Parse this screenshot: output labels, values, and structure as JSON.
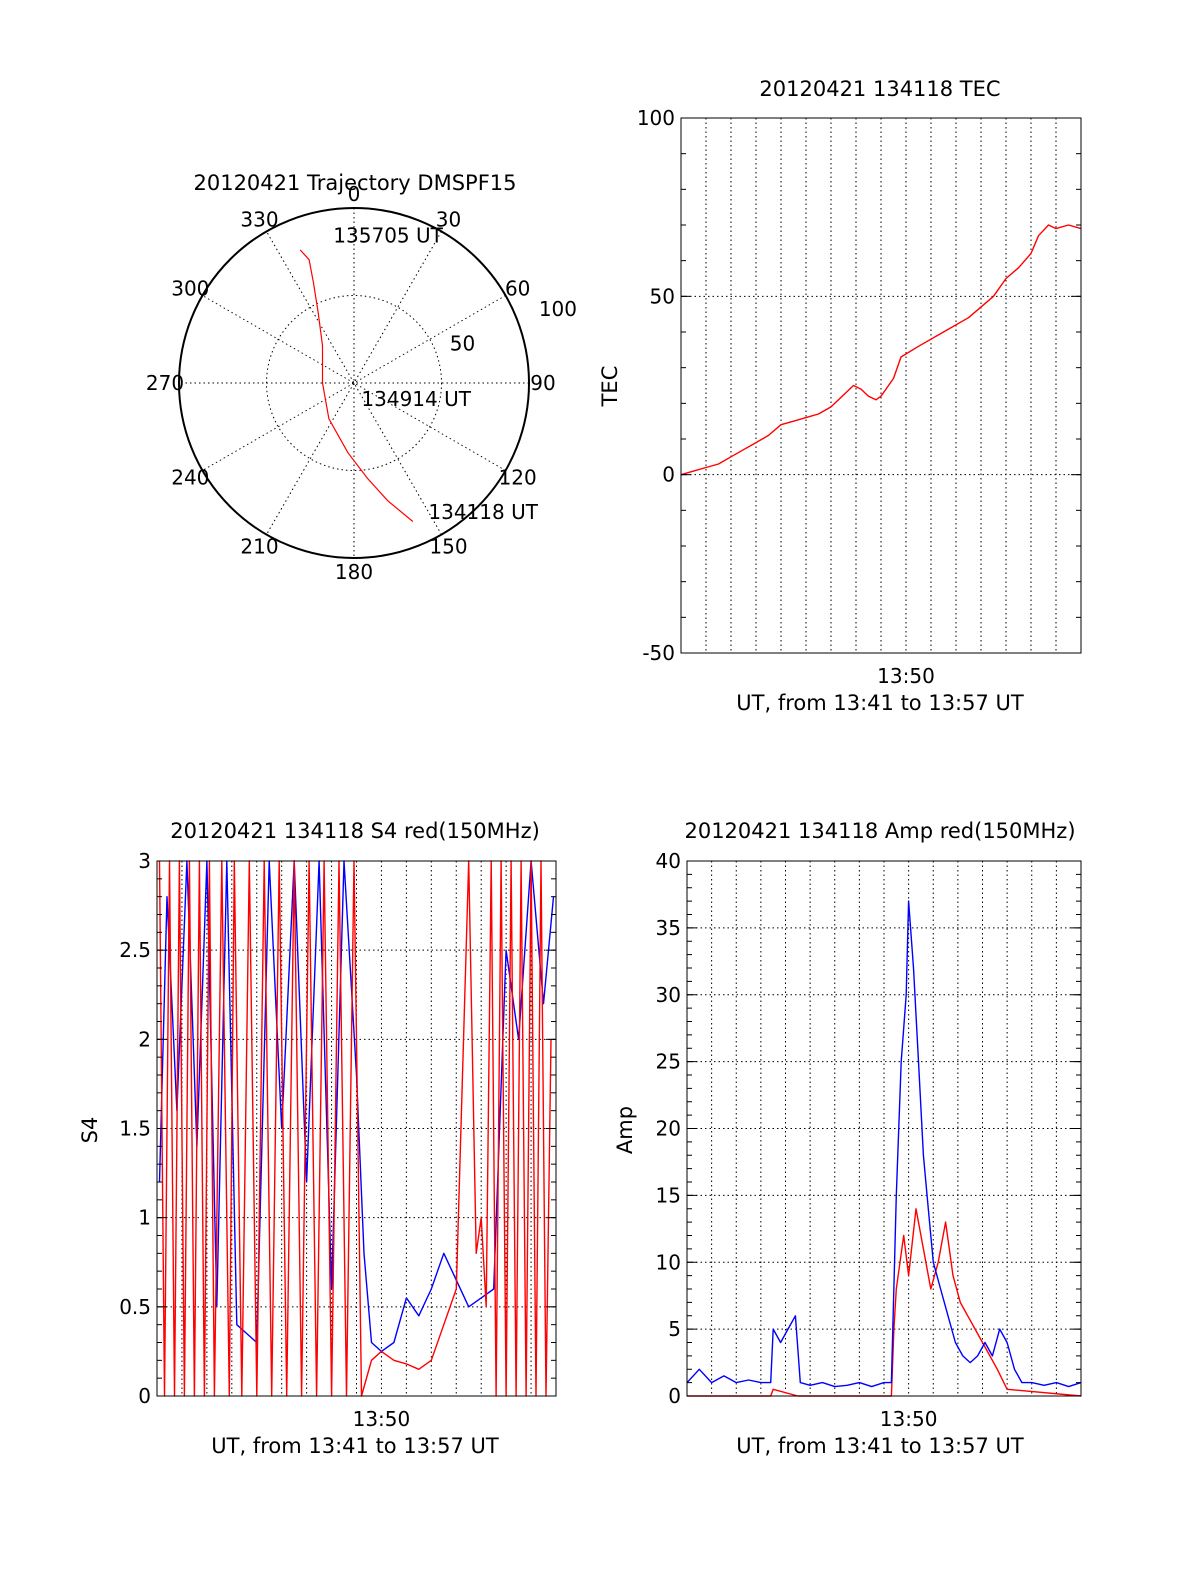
{
  "chart_data": [
    {
      "type": "polar",
      "title": "20120421 Trajectory DMSPF15",
      "angle_labels": [
        "0",
        "30",
        "60",
        "90",
        "120",
        "150",
        "180",
        "210",
        "240",
        "270",
        "300",
        "330"
      ],
      "radial_labels": [
        "50",
        "100"
      ],
      "radial_max": 100,
      "grid": true,
      "series": [
        {
          "color": "#ff0000",
          "points": [
            {
              "az": 157,
              "r": 86
            },
            {
              "az": 164,
              "r": 70
            },
            {
              "az": 172,
              "r": 55
            },
            {
              "az": 185,
              "r": 40
            },
            {
              "az": 215,
              "r": 25
            },
            {
              "az": 270,
              "r": 18
            },
            {
              "az": 320,
              "r": 28
            },
            {
              "az": 333,
              "r": 45
            },
            {
              "az": 338,
              "r": 62
            },
            {
              "az": 340,
              "r": 75
            },
            {
              "az": 338,
              "r": 82
            }
          ]
        }
      ],
      "annotations": [
        {
          "text": "135705 UT",
          "az": 352,
          "r": 85
        },
        {
          "text": "134914 UT",
          "az": 155,
          "r": 10
        },
        {
          "text": "134118 UT",
          "az": 150,
          "r": 85
        }
      ]
    },
    {
      "type": "line",
      "title": "20120421 134118 TEC",
      "xlabel": "UT, from 13:41 to 13:57 UT",
      "ylabel": "TEC",
      "xlim": [
        0,
        16
      ],
      "ylim": [
        -50,
        100
      ],
      "yticks": [
        "100",
        "50",
        "0",
        "-50"
      ],
      "xticks": [
        {
          "label": "13:50",
          "x": 9
        }
      ],
      "grid": true,
      "series": [
        {
          "color": "#ff0000",
          "x": [
            0,
            0.5,
            1,
            1.5,
            2,
            2.5,
            3,
            3.5,
            4,
            4.5,
            5,
            5.5,
            6,
            6.3,
            6.6,
            6.9,
            7.2,
            7.5,
            7.8,
            8.0,
            8.2,
            8.5,
            8.8,
            9.5,
            10.5,
            11.5,
            12.5,
            13.0,
            13.5,
            14.0,
            14.3,
            14.7,
            15.0,
            15.5,
            16.0
          ],
          "y": [
            0,
            1,
            2,
            3,
            5,
            7,
            9,
            11,
            14,
            15,
            16,
            17,
            19,
            21,
            23,
            25,
            24,
            22,
            21,
            22,
            24,
            27,
            33,
            36,
            40,
            44,
            50,
            55,
            58,
            62,
            67,
            70,
            69,
            70,
            69
          ]
        }
      ]
    },
    {
      "type": "line",
      "title": "20120421 134118 S4 red(150MHz)",
      "xlabel": "UT, from 13:41 to 13:57 UT",
      "ylabel": "S4",
      "xlim": [
        0,
        16
      ],
      "ylim": [
        0,
        3
      ],
      "yticks": [
        "3",
        "2.5",
        "2",
        "1.5",
        "1",
        "0.5",
        "0"
      ],
      "xticks": [
        {
          "label": "13:50",
          "x": 9
        }
      ],
      "grid": true,
      "series": [
        {
          "color": "#0000ff",
          "x": [
            0.1,
            0.4,
            0.8,
            1.2,
            1.6,
            2.0,
            2.4,
            2.8,
            3.2,
            3.6,
            4.0,
            4.5,
            5.0,
            5.5,
            6.0,
            6.5,
            7.0,
            7.5,
            8.0,
            8.3,
            8.6,
            9.0,
            9.5,
            10.0,
            10.5,
            11.0,
            11.5,
            12.0,
            12.5,
            13.0,
            13.5,
            14.0,
            14.5,
            15.0,
            15.5,
            15.9
          ],
          "y": [
            1.2,
            2.8,
            1.6,
            3.0,
            1.4,
            3.0,
            0.5,
            3.0,
            0.4,
            0.35,
            0.3,
            3.0,
            1.5,
            3.0,
            1.2,
            3.0,
            0.6,
            3.0,
            1.8,
            0.8,
            0.3,
            0.25,
            0.3,
            0.55,
            0.45,
            0.6,
            0.8,
            0.65,
            0.5,
            0.55,
            0.6,
            2.5,
            2.0,
            3.0,
            2.2,
            2.8
          ]
        },
        {
          "color": "#ff0000",
          "x": [
            0.1,
            0.3,
            0.5,
            0.7,
            0.9,
            1.1,
            1.3,
            1.5,
            1.7,
            1.9,
            2.1,
            2.3,
            2.6,
            2.9,
            3.1,
            3.4,
            3.7,
            4.0,
            4.3,
            4.6,
            4.9,
            5.2,
            5.5,
            5.8,
            6.1,
            6.4,
            6.7,
            7.0,
            7.3,
            7.6,
            7.9,
            8.2,
            8.6,
            9.0,
            9.5,
            10.0,
            10.5,
            11.0,
            11.5,
            12.0,
            12.5,
            12.8,
            13.0,
            13.2,
            13.4,
            13.6,
            13.8,
            14.0,
            14.2,
            14.4,
            14.6,
            14.8,
            15.0,
            15.2,
            15.4,
            15.6,
            15.8
          ],
          "y": [
            3.0,
            0,
            3.0,
            0,
            3.0,
            0,
            3.0,
            0,
            3.0,
            0,
            3.0,
            0,
            3.0,
            0,
            3.0,
            0,
            3.0,
            0,
            3.0,
            0,
            3.0,
            0,
            3.0,
            0,
            3.0,
            0,
            3.0,
            0,
            3.0,
            0,
            3.0,
            0,
            0.2,
            0.25,
            0.2,
            0.18,
            0.15,
            0.2,
            0.4,
            0.6,
            3.0,
            0.8,
            1.0,
            0.5,
            3.0,
            0,
            3.0,
            0,
            3.0,
            0,
            3.0,
            0,
            3.0,
            0,
            3.0,
            0,
            2.0
          ]
        }
      ]
    },
    {
      "type": "line",
      "title": "20120421 134118 Amp red(150MHz)",
      "xlabel": "UT, from 13:41 to 13:57 UT",
      "ylabel": "Amp",
      "xlim": [
        0,
        16
      ],
      "ylim": [
        0,
        40
      ],
      "yticks": [
        "40",
        "35",
        "30",
        "25",
        "20",
        "15",
        "10",
        "5",
        "0"
      ],
      "xticks": [
        {
          "label": "13:50",
          "x": 9
        }
      ],
      "grid": true,
      "series": [
        {
          "color": "#ff0000",
          "x": [
            0,
            3.4,
            3.5,
            4.5,
            4.6,
            8.3,
            8.4,
            8.5,
            8.8,
            9.0,
            9.3,
            9.6,
            9.9,
            10.2,
            10.5,
            10.8,
            11.1,
            11.4,
            11.7,
            12.0,
            12.3,
            12.6,
            13.0,
            16.0
          ],
          "y": [
            0,
            0,
            0.5,
            0,
            0,
            0,
            5,
            8,
            12,
            9,
            14,
            11,
            8,
            10,
            13,
            9,
            7,
            6,
            5,
            4,
            3,
            2,
            0.5,
            0
          ]
        },
        {
          "color": "#0000ff",
          "x": [
            0,
            0.5,
            1.0,
            1.5,
            2.0,
            2.5,
            3.0,
            3.4,
            3.5,
            3.8,
            4.1,
            4.4,
            4.6,
            5.0,
            5.5,
            6.0,
            6.5,
            7.0,
            7.5,
            8.0,
            8.3,
            8.5,
            8.7,
            8.9,
            9.0,
            9.2,
            9.4,
            9.6,
            9.8,
            10.0,
            10.3,
            10.6,
            10.9,
            11.2,
            11.5,
            11.8,
            12.1,
            12.4,
            12.7,
            13.0,
            13.3,
            13.6,
            14.0,
            14.5,
            15.0,
            15.5,
            16.0
          ],
          "y": [
            1,
            2,
            1,
            1.5,
            1,
            1.2,
            1,
            1,
            5,
            4,
            5,
            6,
            1,
            0.8,
            1,
            0.7,
            0.8,
            1,
            0.7,
            1,
            1,
            15,
            25,
            30,
            37,
            32,
            25,
            18,
            14,
            10,
            8,
            6,
            4,
            3,
            2.5,
            3,
            4,
            3,
            5,
            4,
            2,
            1,
            1,
            0.8,
            1,
            0.7,
            1
          ]
        }
      ]
    }
  ]
}
